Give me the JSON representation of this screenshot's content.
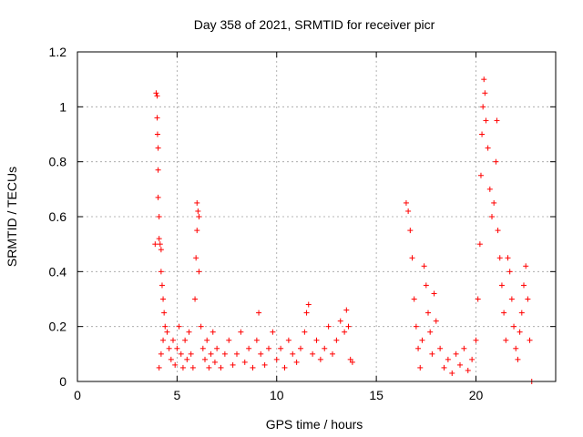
{
  "chart_data": {
    "type": "scatter",
    "title": "Day 358 of 2021, SRMTID for receiver picr",
    "xlabel": "GPS time / hours",
    "ylabel": "SRMTID / TECUs",
    "xlim": [
      0,
      24
    ],
    "ylim": [
      0,
      1.2
    ],
    "x_ticks": [
      0,
      5,
      10,
      15,
      20
    ],
    "y_ticks": [
      0,
      0.2,
      0.4,
      0.6,
      0.8,
      1,
      1.2
    ],
    "x_tick_labels": [
      "0",
      "5",
      "10",
      "15",
      "20"
    ],
    "y_tick_labels": [
      "0",
      "0.2",
      "0.4",
      "0.6",
      "0.8",
      "1",
      "1.2"
    ],
    "grid": true,
    "marker": "+",
    "series": [
      {
        "name": "SRMTID",
        "color": "#ff0000",
        "points": [
          [
            3.9,
            0.5
          ],
          [
            3.95,
            1.05
          ],
          [
            4.0,
            1.04
          ],
          [
            4.0,
            0.96
          ],
          [
            4.02,
            0.9
          ],
          [
            4.05,
            0.85
          ],
          [
            4.05,
            0.77
          ],
          [
            4.05,
            0.67
          ],
          [
            4.1,
            0.6
          ],
          [
            4.1,
            0.52
          ],
          [
            4.15,
            0.5
          ],
          [
            4.2,
            0.48
          ],
          [
            4.2,
            0.4
          ],
          [
            4.25,
            0.35
          ],
          [
            4.3,
            0.3
          ],
          [
            4.35,
            0.25
          ],
          [
            4.4,
            0.2
          ],
          [
            4.3,
            0.15
          ],
          [
            4.2,
            0.1
          ],
          [
            4.1,
            0.05
          ],
          [
            4.5,
            0.18
          ],
          [
            4.6,
            0.12
          ],
          [
            4.7,
            0.08
          ],
          [
            4.8,
            0.15
          ],
          [
            4.9,
            0.06
          ],
          [
            5.0,
            0.12
          ],
          [
            5.1,
            0.2
          ],
          [
            5.2,
            0.1
          ],
          [
            5.3,
            0.05
          ],
          [
            5.4,
            0.15
          ],
          [
            5.5,
            0.08
          ],
          [
            5.6,
            0.18
          ],
          [
            5.7,
            0.1
          ],
          [
            5.8,
            0.05
          ],
          [
            5.9,
            0.3
          ],
          [
            5.95,
            0.45
          ],
          [
            6.0,
            0.55
          ],
          [
            6.0,
            0.65
          ],
          [
            6.05,
            0.62
          ],
          [
            6.1,
            0.6
          ],
          [
            6.1,
            0.4
          ],
          [
            6.2,
            0.2
          ],
          [
            6.3,
            0.12
          ],
          [
            6.4,
            0.08
          ],
          [
            6.5,
            0.15
          ],
          [
            6.6,
            0.05
          ],
          [
            6.7,
            0.1
          ],
          [
            6.8,
            0.18
          ],
          [
            6.9,
            0.07
          ],
          [
            7.0,
            0.12
          ],
          [
            7.2,
            0.05
          ],
          [
            7.4,
            0.1
          ],
          [
            7.6,
            0.15
          ],
          [
            7.8,
            0.06
          ],
          [
            8.0,
            0.1
          ],
          [
            8.2,
            0.18
          ],
          [
            8.4,
            0.07
          ],
          [
            8.6,
            0.12
          ],
          [
            8.8,
            0.05
          ],
          [
            9.0,
            0.15
          ],
          [
            9.1,
            0.25
          ],
          [
            9.2,
            0.1
          ],
          [
            9.4,
            0.06
          ],
          [
            9.6,
            0.12
          ],
          [
            9.8,
            0.18
          ],
          [
            10.0,
            0.08
          ],
          [
            10.2,
            0.12
          ],
          [
            10.4,
            0.05
          ],
          [
            10.6,
            0.15
          ],
          [
            10.8,
            0.1
          ],
          [
            11.0,
            0.07
          ],
          [
            11.2,
            0.12
          ],
          [
            11.4,
            0.18
          ],
          [
            11.5,
            0.25
          ],
          [
            11.6,
            0.28
          ],
          [
            11.8,
            0.1
          ],
          [
            12.0,
            0.15
          ],
          [
            12.2,
            0.08
          ],
          [
            12.4,
            0.12
          ],
          [
            12.6,
            0.2
          ],
          [
            12.8,
            0.1
          ],
          [
            13.0,
            0.15
          ],
          [
            13.2,
            0.22
          ],
          [
            13.4,
            0.18
          ],
          [
            13.5,
            0.26
          ],
          [
            13.6,
            0.2
          ],
          [
            13.7,
            0.08
          ],
          [
            13.8,
            0.07
          ],
          [
            16.5,
            0.65
          ],
          [
            16.6,
            0.62
          ],
          [
            16.7,
            0.55
          ],
          [
            16.8,
            0.45
          ],
          [
            16.9,
            0.3
          ],
          [
            17.0,
            0.2
          ],
          [
            17.1,
            0.12
          ],
          [
            17.2,
            0.05
          ],
          [
            17.3,
            0.15
          ],
          [
            17.4,
            0.42
          ],
          [
            17.5,
            0.35
          ],
          [
            17.6,
            0.25
          ],
          [
            17.7,
            0.18
          ],
          [
            17.8,
            0.1
          ],
          [
            17.9,
            0.32
          ],
          [
            18.0,
            0.22
          ],
          [
            18.2,
            0.12
          ],
          [
            18.4,
            0.05
          ],
          [
            18.6,
            0.08
          ],
          [
            18.8,
            0.03
          ],
          [
            19.0,
            0.1
          ],
          [
            19.2,
            0.06
          ],
          [
            19.4,
            0.12
          ],
          [
            19.6,
            0.04
          ],
          [
            19.8,
            0.08
          ],
          [
            20.0,
            0.15
          ],
          [
            20.1,
            0.3
          ],
          [
            20.2,
            0.5
          ],
          [
            20.25,
            0.75
          ],
          [
            20.3,
            0.9
          ],
          [
            20.35,
            1.0
          ],
          [
            20.4,
            1.1
          ],
          [
            20.45,
            1.05
          ],
          [
            20.5,
            0.95
          ],
          [
            20.6,
            0.85
          ],
          [
            20.7,
            0.7
          ],
          [
            20.8,
            0.6
          ],
          [
            20.9,
            0.65
          ],
          [
            21.0,
            0.8
          ],
          [
            21.05,
            0.95
          ],
          [
            21.1,
            0.55
          ],
          [
            21.2,
            0.45
          ],
          [
            21.3,
            0.35
          ],
          [
            21.4,
            0.25
          ],
          [
            21.5,
            0.15
          ],
          [
            21.6,
            0.45
          ],
          [
            21.7,
            0.4
          ],
          [
            21.8,
            0.3
          ],
          [
            21.9,
            0.2
          ],
          [
            22.0,
            0.12
          ],
          [
            22.1,
            0.08
          ],
          [
            22.2,
            0.18
          ],
          [
            22.3,
            0.25
          ],
          [
            22.4,
            0.35
          ],
          [
            22.5,
            0.42
          ],
          [
            22.6,
            0.3
          ],
          [
            22.7,
            0.15
          ],
          [
            22.8,
            0.0
          ]
        ]
      }
    ]
  }
}
